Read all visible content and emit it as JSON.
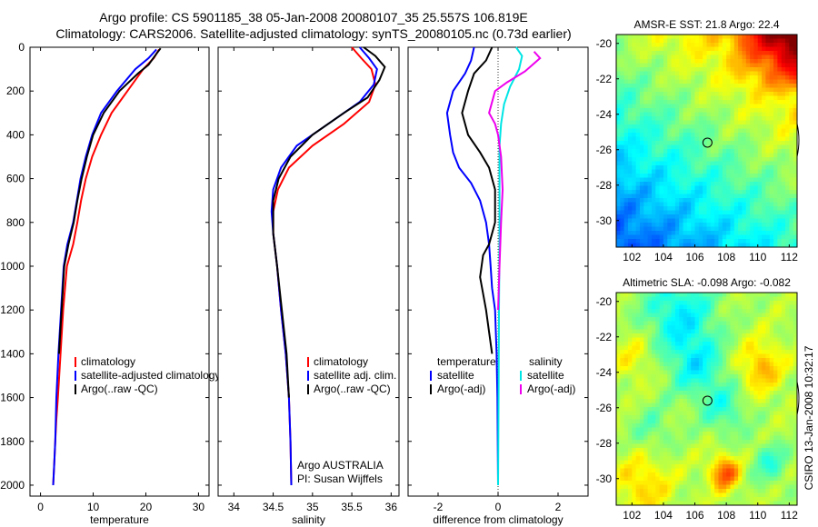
{
  "header": {
    "title_line1": "Argo profile: CS 5901185_38 05-Jan-2008 20080107_35 25.557S 106.819E",
    "title_line2": "Climatology: CARS2006. Satellite-adjusted climatology: synTS_20080105.nc (0.73d earlier)"
  },
  "side_text": "CSIRO 13-Jan-2008 10:32:17",
  "chart_data": [
    {
      "type": "line",
      "id": "temperature",
      "xlabel": "temperature",
      "ylabel": "",
      "xlim": [
        -2,
        32
      ],
      "ylim": [
        2050,
        0
      ],
      "xticks": [
        0,
        10,
        20,
        30
      ],
      "yticks": [
        0,
        200,
        400,
        600,
        800,
        1000,
        1200,
        1400,
        1600,
        1800,
        2000
      ],
      "legend": {
        "entries": [
          "climatology",
          "satellite-adjusted climatology",
          "Argo(..raw -QC)"
        ],
        "colors": [
          "#ff0000",
          "#0000ff",
          "#000000"
        ]
      },
      "series": [
        {
          "name": "climatology",
          "color": "#ff0000",
          "x": [
            22.5,
            21.5,
            19.5,
            16.5,
            13.5,
            11.5,
            9.8,
            8.6,
            7.7,
            7.0,
            6.2,
            5.0,
            4.3,
            3.8,
            3.3,
            3.0,
            2.8,
            2.6,
            2.4
          ],
          "y": [
            10,
            50,
            100,
            200,
            300,
            400,
            500,
            600,
            700,
            800,
            900,
            1000,
            1200,
            1400,
            1600,
            1700,
            1800,
            1900,
            2000
          ]
        },
        {
          "name": "satellite-adjusted climatology",
          "color": "#0000ff",
          "x": [
            22.0,
            20.5,
            18.0,
            14.5,
            11.5,
            9.8,
            8.6,
            7.6,
            6.9,
            6.2,
            5.1,
            4.4,
            3.9,
            3.4,
            3.0,
            2.8,
            2.6,
            2.4
          ],
          "y": [
            10,
            50,
            100,
            200,
            300,
            400,
            500,
            600,
            700,
            800,
            900,
            1000,
            1200,
            1400,
            1600,
            1800,
            1900,
            2000
          ]
        },
        {
          "name": "Argo(..raw -QC)",
          "color": "#000000",
          "x": [
            22.8,
            22.0,
            20.5,
            18.5,
            15.0,
            12.0,
            10.0,
            8.8,
            7.8,
            7.0,
            6.3,
            5.3,
            4.5,
            4.0,
            3.5
          ],
          "y": [
            5,
            30,
            80,
            120,
            200,
            300,
            400,
            500,
            600,
            700,
            800,
            900,
            1000,
            1200,
            1400
          ]
        }
      ],
      "annotations": []
    },
    {
      "type": "line",
      "id": "salinity",
      "xlabel": "salinity",
      "ylabel": "",
      "xlim": [
        33.8,
        36.1
      ],
      "ylim": [
        2050,
        0
      ],
      "xticks": [
        34,
        34.5,
        35,
        35.5,
        36
      ],
      "yticks": [],
      "legend": {
        "entries": [
          "climatology",
          "satellite adj. clim.",
          "Argo(..raw -QC)"
        ],
        "colors": [
          "#ff0000",
          "#0000ff",
          "#000000"
        ]
      },
      "series": [
        {
          "name": "climatology",
          "color": "#ff0000",
          "x": [
            35.5,
            35.62,
            35.75,
            35.8,
            35.72,
            35.4,
            35.0,
            34.7,
            34.56,
            34.5,
            34.5,
            34.55,
            34.6,
            34.66,
            34.7,
            34.72,
            34.73
          ],
          "y": [
            0,
            50,
            100,
            170,
            250,
            350,
            450,
            550,
            650,
            750,
            850,
            1000,
            1200,
            1400,
            1600,
            1800,
            2000
          ]
        },
        {
          "name": "satellite adj. clim.",
          "color": "#0000ff",
          "x": [
            35.6,
            35.72,
            35.82,
            35.78,
            35.6,
            35.2,
            34.8,
            34.6,
            34.5,
            34.48,
            34.5,
            34.55,
            34.6,
            34.66,
            34.7,
            34.72,
            34.73
          ],
          "y": [
            0,
            50,
            100,
            170,
            250,
            350,
            450,
            550,
            650,
            750,
            850,
            1000,
            1200,
            1400,
            1600,
            1800,
            2000
          ]
        },
        {
          "name": "Argo(..raw -QC)",
          "color": "#000000",
          "x": [
            35.65,
            35.8,
            35.92,
            35.85,
            35.7,
            35.4,
            35.0,
            34.72,
            34.57,
            34.5,
            34.5,
            34.55,
            34.61,
            34.67,
            34.7
          ],
          "y": [
            0,
            40,
            90,
            150,
            230,
            300,
            400,
            500,
            600,
            700,
            850,
            1000,
            1200,
            1400,
            1600
          ]
        }
      ],
      "annotations": [
        "Argo AUSTRALIA",
        "PI: Susan Wijffels"
      ]
    },
    {
      "type": "line",
      "id": "difference",
      "xlabel": "difference from climatology",
      "ylabel": "",
      "xlim": [
        -3,
        3
      ],
      "ylim": [
        2050,
        0
      ],
      "xticks": [
        -2,
        0,
        2
      ],
      "yticks": [],
      "zero_line": true,
      "legend": {
        "groups": [
          {
            "title": "temperature",
            "entries": [
              "satellite",
              "Argo(-adj)"
            ],
            "colors": [
              "#0000ff",
              "#000000"
            ]
          },
          {
            "title": "salinity",
            "entries": [
              "satellite",
              "Argo(-adj)"
            ],
            "colors": [
              "#00e5e5",
              "#ee00ee"
            ]
          }
        ]
      },
      "series": [
        {
          "name": "temperature satellite",
          "color": "#0000ff",
          "x": [
            -0.8,
            -0.9,
            -1.1,
            -1.5,
            -1.7,
            -1.6,
            -1.5,
            -1.3,
            -0.9,
            -0.6,
            -0.4,
            -0.3,
            -0.25,
            -0.2,
            -0.1,
            -0.05,
            -0.02,
            0
          ],
          "y": [
            0,
            60,
            120,
            200,
            300,
            400,
            480,
            550,
            620,
            700,
            800,
            900,
            1000,
            1100,
            1200,
            1400,
            1600,
            2000
          ]
        },
        {
          "name": "temperature Argo(-adj)",
          "color": "#000000",
          "x": [
            -0.2,
            -0.4,
            -0.8,
            -1.0,
            -1.2,
            -1.0,
            -0.6,
            -0.3,
            -0.1,
            -0.1,
            -0.3,
            -0.5,
            -0.6,
            -0.4,
            -0.2
          ],
          "y": [
            0,
            60,
            120,
            200,
            300,
            400,
            480,
            550,
            650,
            800,
            900,
            950,
            1050,
            1200,
            1400
          ]
        },
        {
          "name": "salinity satellite",
          "color": "#00e5e5",
          "x": [
            0.6,
            0.8,
            0.7,
            0.4,
            0.2,
            0.1,
            0.05,
            0.05,
            0.05,
            0.05,
            0.03,
            0.02,
            0.01,
            0
          ],
          "y": [
            0,
            40,
            100,
            180,
            260,
            350,
            450,
            550,
            700,
            900,
            1200,
            1500,
            1800,
            2000
          ]
        },
        {
          "name": "salinity Argo(-adj)",
          "color": "#ee00ee",
          "x": [
            1.2,
            1.4,
            0.9,
            0.3,
            -0.1,
            -0.3,
            -0.1,
            0.0,
            0.1,
            0.15,
            0.1,
            0.05,
            0.0
          ],
          "y": [
            20,
            50,
            110,
            160,
            200,
            300,
            350,
            400,
            500,
            650,
            800,
            1000,
            1200
          ]
        }
      ],
      "annotations": []
    },
    {
      "type": "heatmap",
      "id": "sst_map",
      "title": "AMSR-E SST: 21.8 Argo: 22.4",
      "xlim": [
        101,
        112.5
      ],
      "ylim": [
        -31.5,
        -19.5
      ],
      "xticks": [
        102,
        104,
        106,
        108,
        110,
        112
      ],
      "yticks": [
        -20,
        -22,
        -24,
        -26,
        -28,
        -30
      ],
      "marker": {
        "lon": 106.8,
        "lat": -25.6
      },
      "colormap": "jet"
    },
    {
      "type": "heatmap",
      "id": "sla_map",
      "title": "Altimetric SLA: -0.098 Argo: -0.082",
      "xlim": [
        101,
        112.5
      ],
      "ylim": [
        -31.5,
        -19.5
      ],
      "xticks": [
        102,
        104,
        106,
        108,
        110,
        112
      ],
      "yticks": [
        -20,
        -22,
        -24,
        -26,
        -28,
        -30
      ],
      "marker": {
        "lon": 106.8,
        "lat": -25.6
      },
      "colormap": "jet"
    }
  ]
}
